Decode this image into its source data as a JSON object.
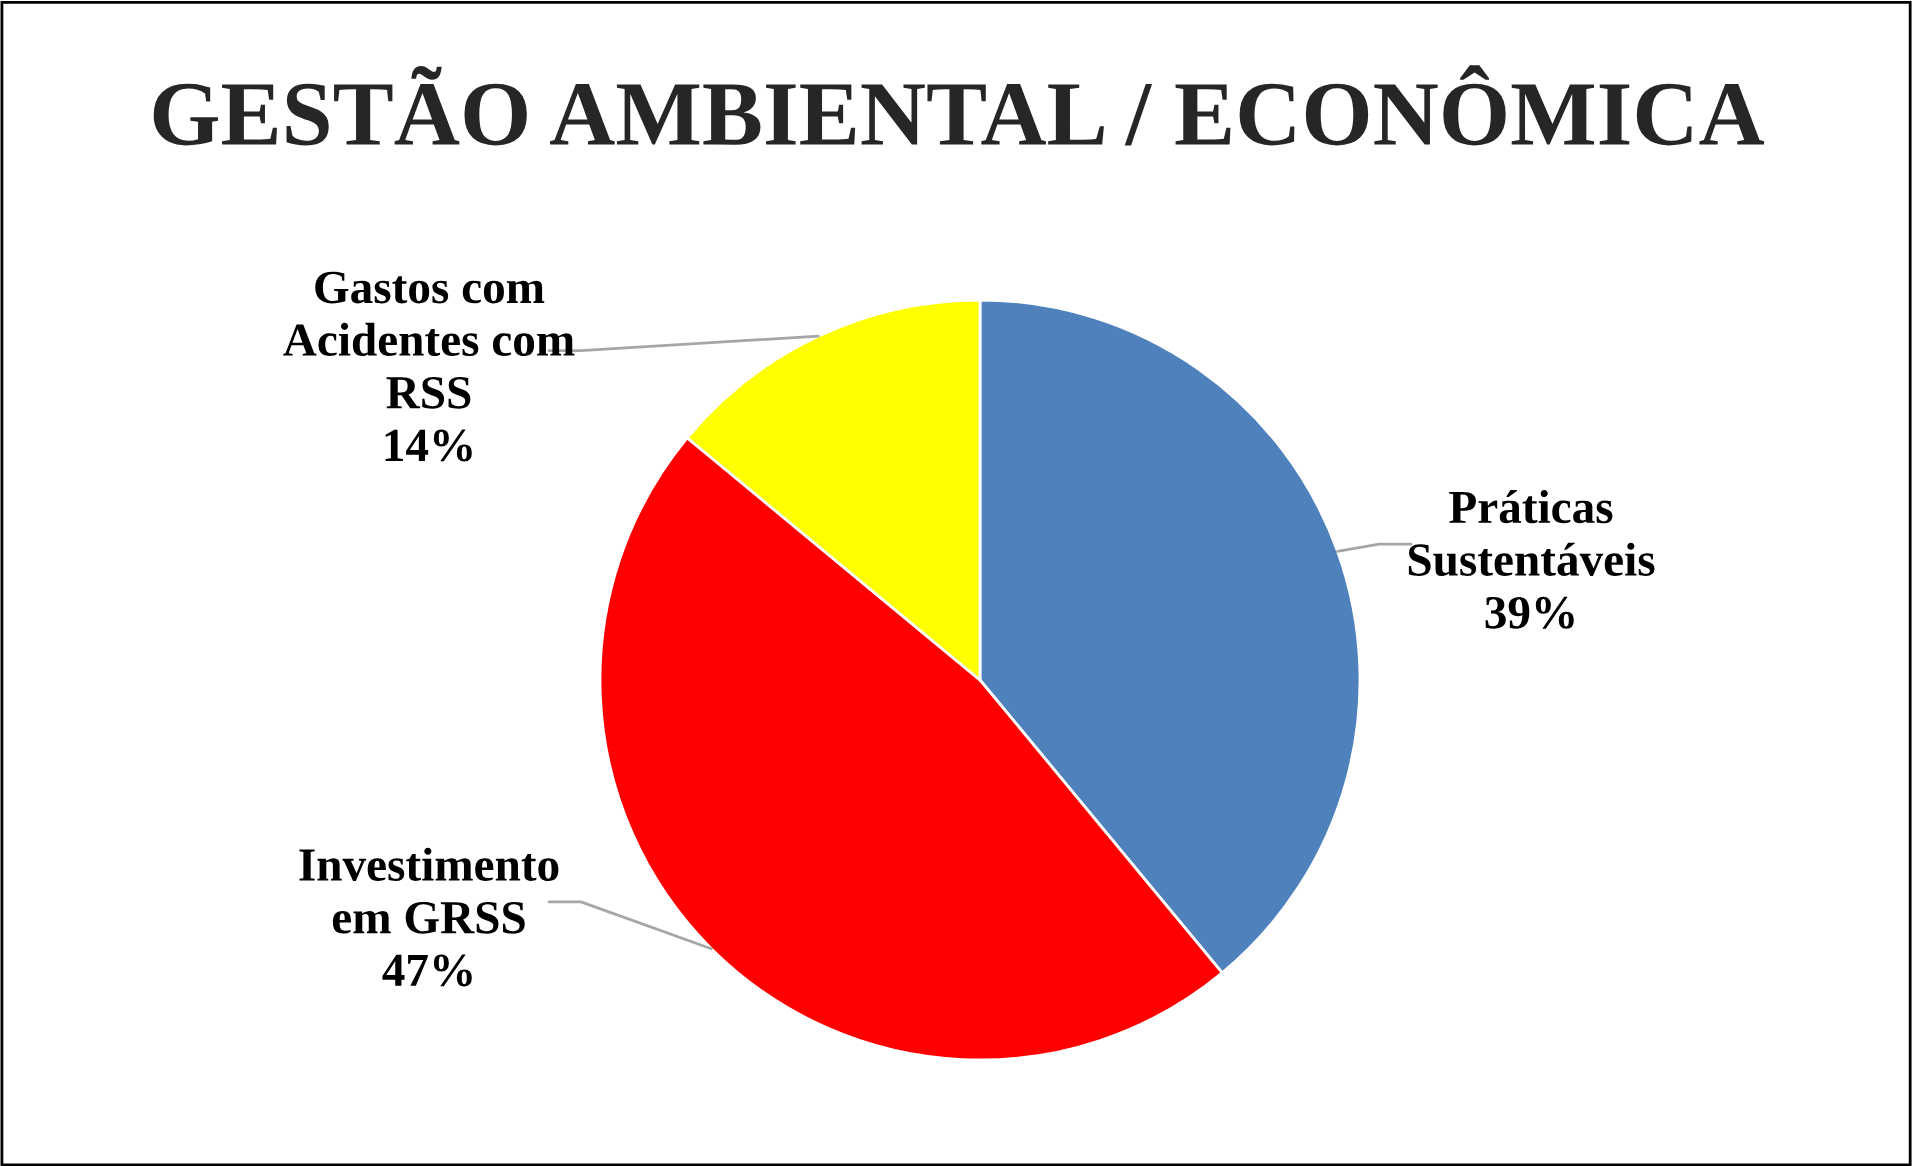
{
  "chart_data": {
    "type": "pie",
    "title": "GESTÃO AMBIENTAL / ECONÔMICA",
    "categories": [
      "Práticas\nSustentáveis",
      "Investimento\nem GRSS",
      "Gastos com\nAcidentes com\nRSS"
    ],
    "values": [
      39,
      47,
      14
    ],
    "value_labels": [
      "39%",
      "47%",
      "14%"
    ],
    "colors": [
      "#4f81bd",
      "#ff0000",
      "#ffff00"
    ],
    "legend": false
  }
}
